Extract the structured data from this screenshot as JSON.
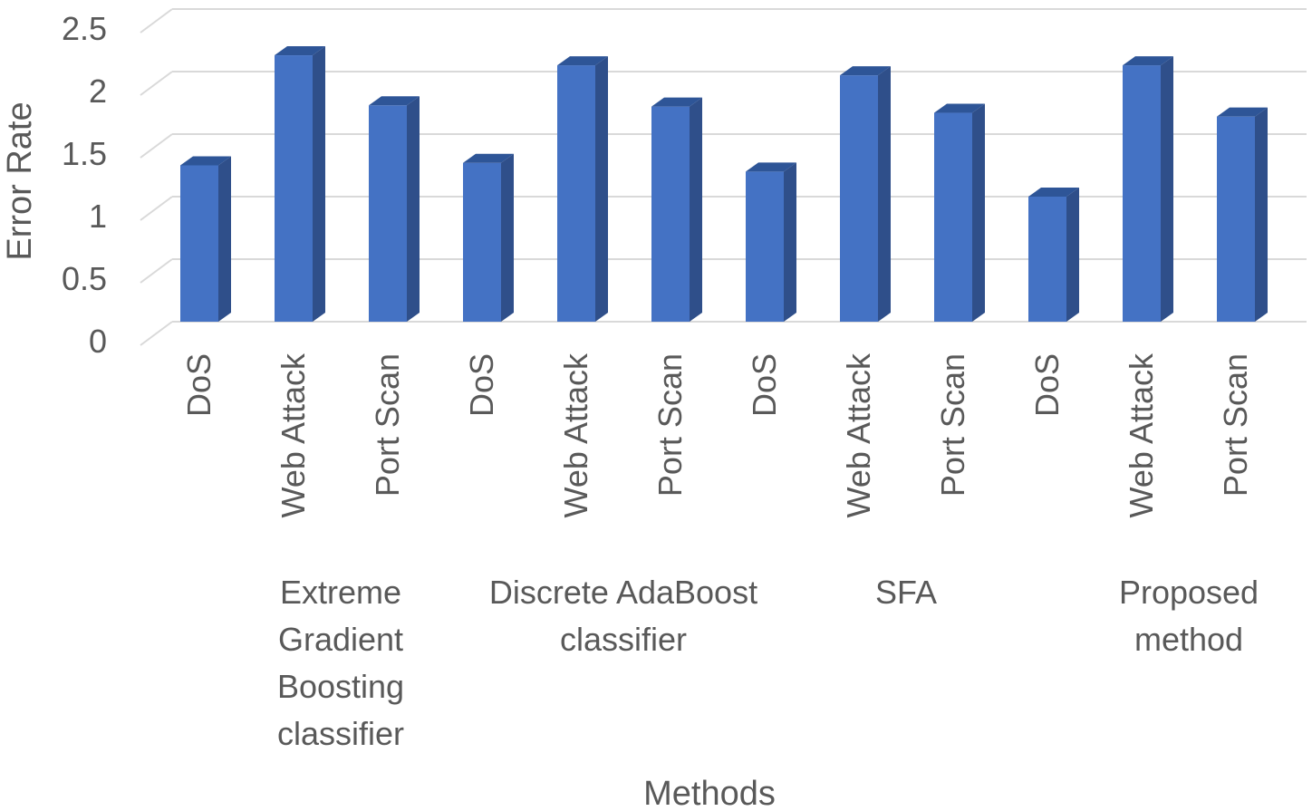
{
  "chart_data": {
    "type": "bar",
    "title": "",
    "xlabel": "Methods",
    "ylabel": "Error Rate",
    "ylim": [
      0,
      2.5
    ],
    "yticks": [
      "0",
      "0.5",
      "1",
      "1.5",
      "2",
      "2.5"
    ],
    "grid": true,
    "legend": "none",
    "colors": {
      "bar_front": "#4472C4",
      "bar_side": "#2F4F8A",
      "bar_top": "#2E5597",
      "grid": "#D9D9D9",
      "text": "#595959"
    },
    "groups": [
      {
        "label": "",
        "categories": [
          "DoS"
        ],
        "values": [
          1.25
        ]
      },
      {
        "label": "Extreme Gradient Boosting classifier",
        "categories": [
          "Web Attack",
          "Port Scan"
        ],
        "values": [
          2.13,
          1.73
        ]
      },
      {
        "label": "",
        "categories": [
          "DoS"
        ],
        "values": [
          1.27
        ]
      },
      {
        "label": "Discrete AdaBoost classifier",
        "categories": [
          "Web Attack",
          "Port Scan"
        ],
        "values": [
          2.05,
          1.72
        ]
      },
      {
        "label": "",
        "categories": [
          "DoS"
        ],
        "values": [
          1.2
        ]
      },
      {
        "label": "SFA",
        "categories": [
          "Web Attack",
          "Port Scan"
        ],
        "values": [
          1.97,
          1.67
        ]
      },
      {
        "label": "",
        "categories": [
          "DoS"
        ],
        "values": [
          1.0
        ]
      },
      {
        "label": "Proposed method",
        "categories": [
          "Web Attack",
          "Port Scan"
        ],
        "values": [
          2.05,
          1.64
        ]
      }
    ]
  }
}
